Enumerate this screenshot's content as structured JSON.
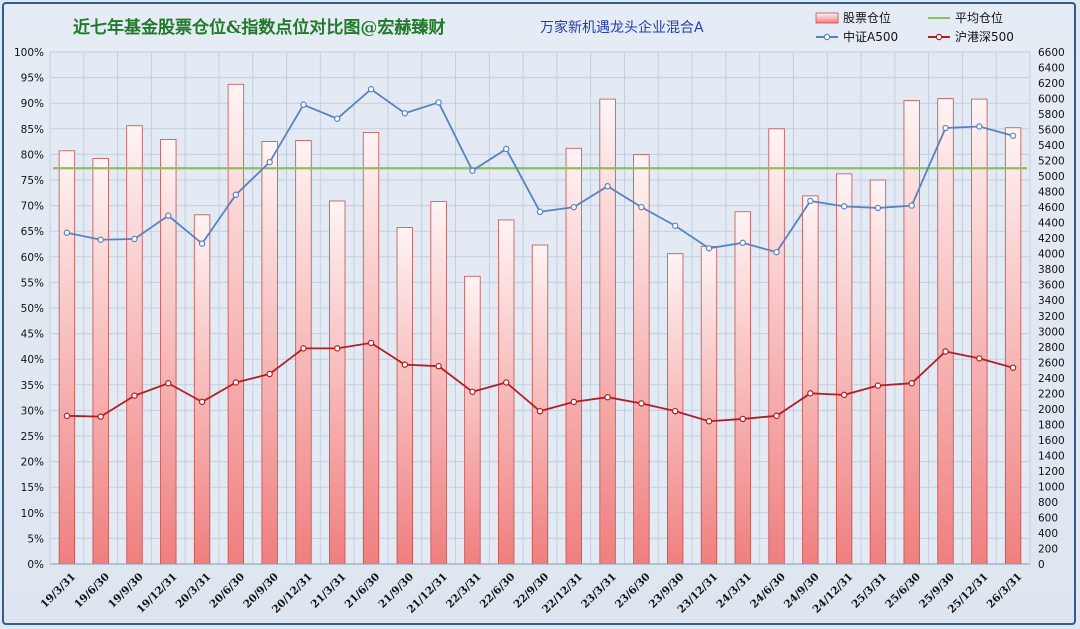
{
  "chart_data": {
    "type": "bar+line",
    "title": "近七年基金股票仓位&指数点位对比图@宏赫臻财",
    "subtitle": "万家新机遇龙头企业混合A",
    "categories": [
      "19/3/31",
      "19/6/30",
      "19/9/30",
      "19/12/31",
      "20/3/31",
      "20/6/30",
      "20/9/30",
      "20/12/31",
      "21/3/31",
      "21/6/30",
      "21/9/30",
      "21/12/31",
      "22/3/31",
      "22/6/30",
      "22/9/30",
      "22/12/31",
      "23/3/31",
      "23/6/30",
      "23/9/30",
      "23/12/31",
      "24/3/31",
      "24/6/30",
      "24/9/30",
      "24/12/31",
      "25/3/31",
      "25/6/30",
      "25/9/30",
      "25/12/31",
      "26/3/31"
    ],
    "left_axis": {
      "min": 0,
      "max": 100,
      "step": 5,
      "unit": "%"
    },
    "right_axis": {
      "min": 0,
      "max": 6600,
      "step": 200
    },
    "series": [
      {
        "name": "股票仓位",
        "type": "bar",
        "axis": "left",
        "color": "#f28c8c",
        "values": [
          80.7,
          79.2,
          85.6,
          82.9,
          68.2,
          93.7,
          82.5,
          82.7,
          70.9,
          84.3,
          65.7,
          70.8,
          56.2,
          67.2,
          62.3,
          81.2,
          90.8,
          80.0,
          60.6,
          62.0,
          68.8,
          85.0,
          71.9,
          76.2,
          75.0,
          90.5,
          90.9,
          90.8,
          85.2
        ]
      },
      {
        "name": "平均仓位",
        "type": "line",
        "axis": "left",
        "color": "#8cc15a",
        "values": [
          77.3,
          77.3,
          77.3,
          77.3,
          77.3,
          77.3,
          77.3,
          77.3,
          77.3,
          77.3,
          77.3,
          77.3,
          77.3,
          77.3,
          77.3,
          77.3,
          77.3,
          77.3,
          77.3,
          77.3,
          77.3,
          77.3,
          77.3,
          77.3,
          77.3,
          77.3,
          77.3,
          77.3,
          77.3
        ]
      },
      {
        "name": "中证A500",
        "type": "line",
        "axis": "right",
        "color": "#5b82c0",
        "values": [
          4270,
          4180,
          4190,
          4490,
          4130,
          4760,
          5180,
          5920,
          5740,
          6120,
          5810,
          5950,
          5070,
          5350,
          4540,
          4600,
          4870,
          4600,
          4360,
          4070,
          4140,
          4020,
          4680,
          4610,
          4590,
          4620,
          5620,
          5640,
          5520
        ]
      },
      {
        "name": "沪港深500",
        "type": "line",
        "axis": "right",
        "color": "#b01f24",
        "values": [
          1910,
          1900,
          2170,
          2330,
          2090,
          2340,
          2450,
          2780,
          2780,
          2850,
          2570,
          2550,
          2220,
          2340,
          1970,
          2090,
          2150,
          2070,
          1970,
          1840,
          1870,
          1910,
          2200,
          2180,
          2300,
          2330,
          2740,
          2650,
          2530
        ]
      }
    ],
    "grid": true,
    "legend": "top-right"
  }
}
